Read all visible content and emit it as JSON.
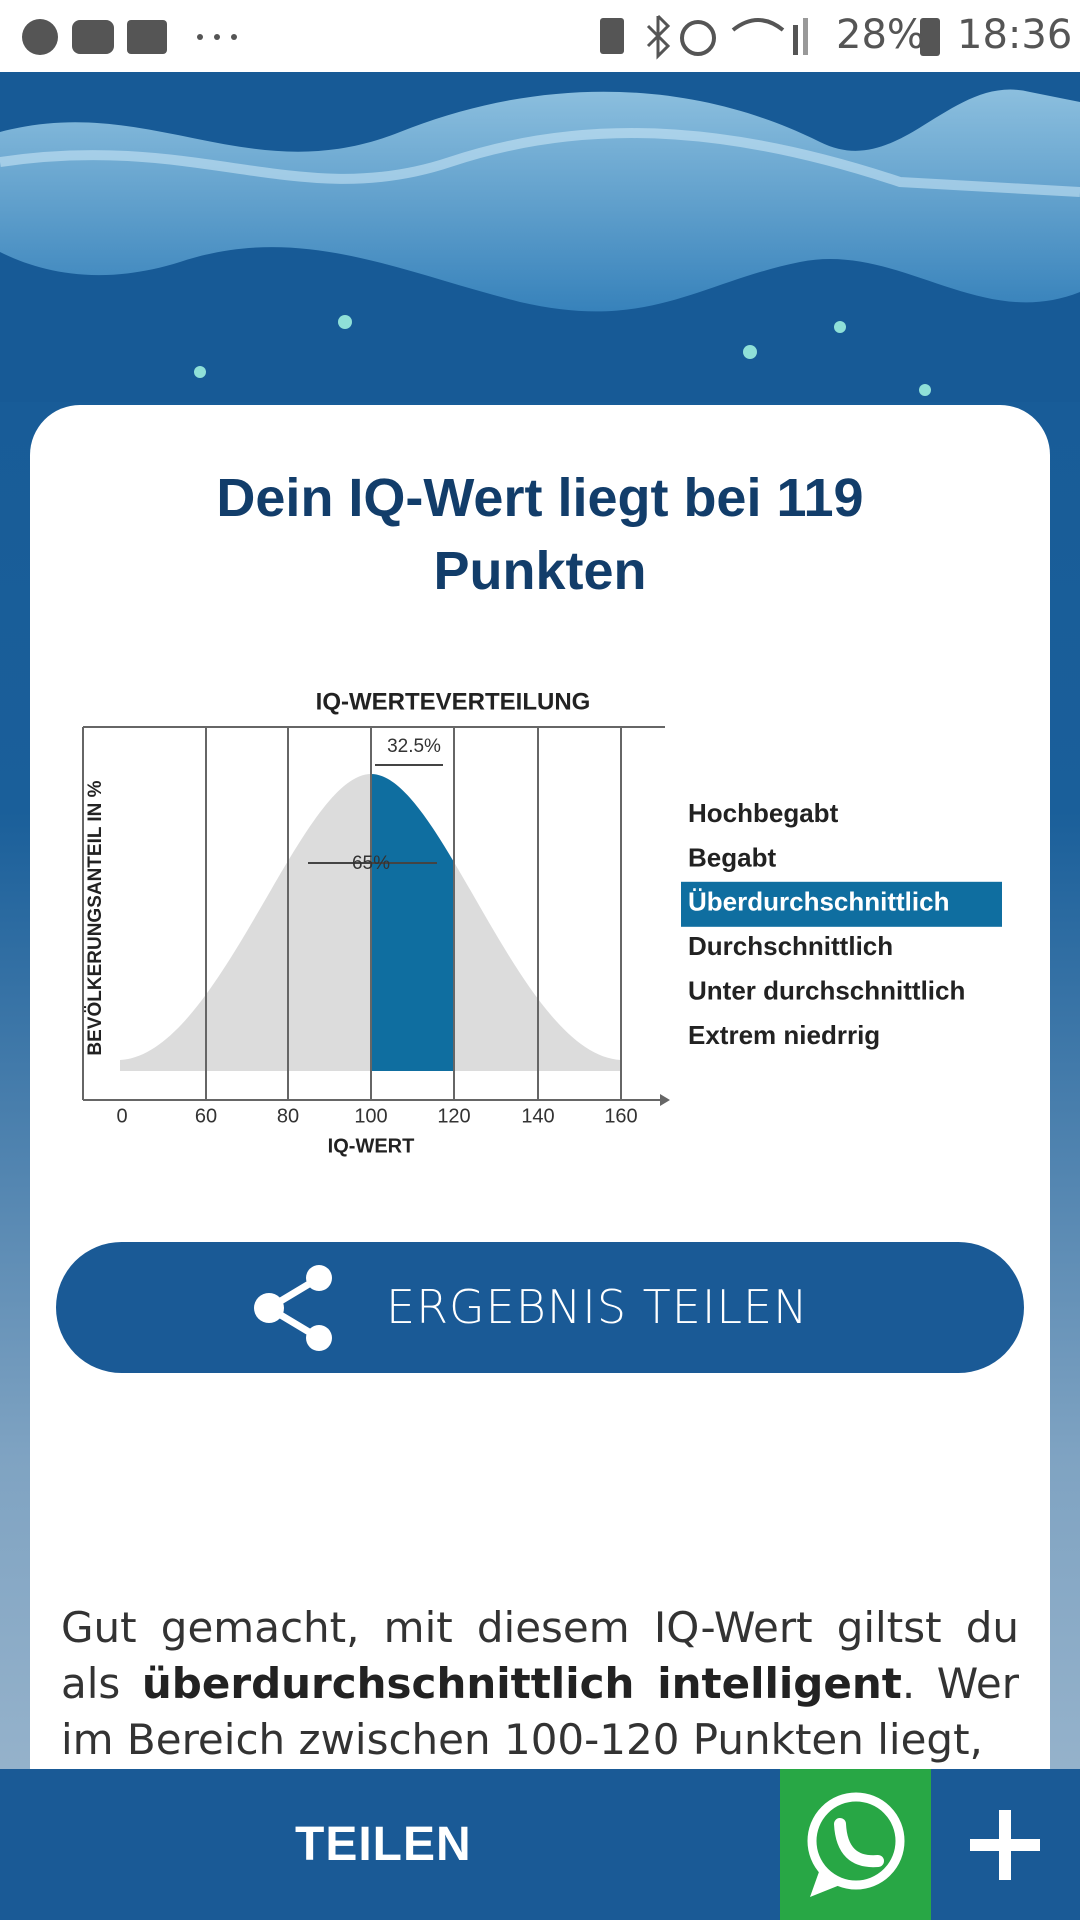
{
  "status_bar": {
    "battery": "28%",
    "time": "18:36"
  },
  "result": {
    "title": "Dein IQ-Wert liegt bei 119 Punkten"
  },
  "figure": {
    "title": "IQ-WERTEVERTEILUNG",
    "y_label": "BEVÖLKERUNGSANTEIL IN %",
    "x_label": "IQ-WERT",
    "x_ticks": [
      "0",
      "60",
      "80",
      "100",
      "120",
      "140",
      "160"
    ],
    "annotations": [
      "32.5%",
      "65%"
    ],
    "legend": [
      "Hochbegabt",
      "Begabt",
      "Überdurchschnittlich",
      "Durchschnittlich",
      "Unter durchschnittlich",
      "Extrem niedrrig"
    ],
    "highlighted": 2
  },
  "share_button": {
    "label": "ERGEBNIS TEILEN"
  },
  "text": {
    "parts": [
      "Gut gemacht, mit diesem IQ-Wert giltst du als ",
      "überdurchschnittlich intelligent",
      ". Wer im Bereich zwischen 100-120 Punkten liegt,"
    ]
  },
  "bottom_bar": {
    "share": "TEILEN"
  }
}
